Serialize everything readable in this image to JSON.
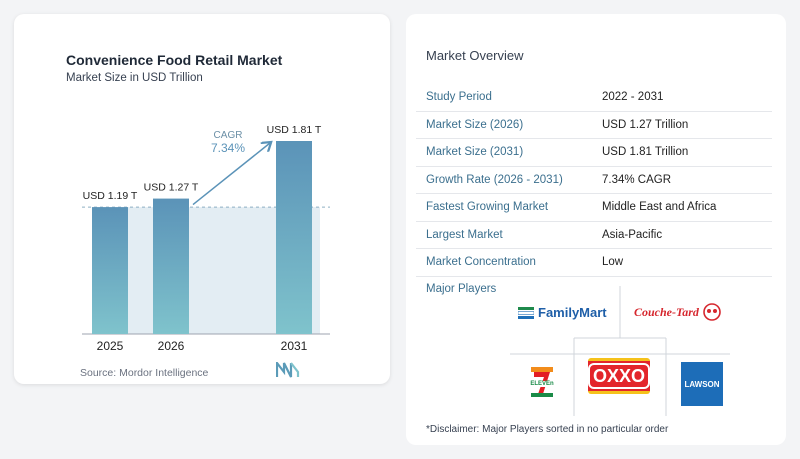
{
  "chart_data": {
    "type": "bar",
    "title": "Convenience Food Retail Market",
    "subtitle": "Market Size in USD Trillion",
    "categories": [
      "2025",
      "2026",
      "2031"
    ],
    "values": [
      1.19,
      1.27,
      1.81
    ],
    "data_labels": [
      "USD 1.19 T",
      "USD 1.27 T",
      "USD 1.81 T"
    ],
    "cagr_label": "CAGR",
    "cagr_value": "7.34%",
    "ylim": [
      0,
      1.81
    ],
    "grid": false,
    "colors": {
      "bar_top": "#5b93b8",
      "bar_bottom": "#7fc3cc",
      "band": "#e3edf3"
    }
  },
  "source": "Source: Mordor Intelligence",
  "overview": {
    "title": "Market Overview",
    "rows": [
      {
        "key": "Study Period",
        "value": "2022 - 2031"
      },
      {
        "key": "Market Size (2026)",
        "value": "USD 1.27 Trillion"
      },
      {
        "key": "Market Size (2031)",
        "value": "USD 1.81 Trillion"
      },
      {
        "key": "Growth Rate (2026 - 2031)",
        "value": "7.34% CAGR"
      },
      {
        "key": "Fastest Growing Market",
        "value": "Middle East and Africa"
      },
      {
        "key": "Largest Market",
        "value": "Asia-Pacific"
      },
      {
        "key": "Market Concentration",
        "value": "Low"
      }
    ]
  },
  "players": {
    "title": "Major Players",
    "logos": [
      "FamilyMart",
      "Couche-Tard",
      "7-ELEVEn",
      "OXXO",
      "LAWSON"
    ],
    "seven_text": "ELEVEn",
    "disclaimer": "*Disclaimer: Major Players sorted in no particular order"
  }
}
